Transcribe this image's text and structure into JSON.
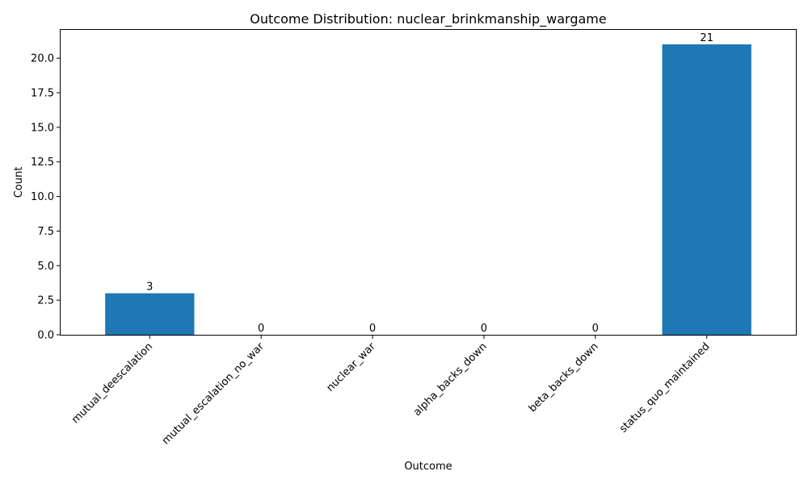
{
  "chart_data": {
    "type": "bar",
    "title": "Outcome Distribution: nuclear_brinkmanship_wargame",
    "xlabel": "Outcome",
    "ylabel": "Count",
    "categories": [
      "mutual_deescalation",
      "mutual_escalation_no_war",
      "nuclear_war",
      "alpha_backs_down",
      "beta_backs_down",
      "status_quo_maintained"
    ],
    "values": [
      3,
      0,
      0,
      0,
      0,
      21
    ],
    "data_labels": [
      "3",
      "0",
      "0",
      "0",
      "0",
      "21"
    ],
    "ylim": [
      0,
      22.05
    ],
    "yticks": [
      0.0,
      2.5,
      5.0,
      7.5,
      10.0,
      12.5,
      15.0,
      17.5,
      20.0
    ],
    "ytick_labels": [
      "0.0",
      "2.5",
      "5.0",
      "7.5",
      "10.0",
      "12.5",
      "15.0",
      "17.5",
      "20.0"
    ],
    "bar_color": "#1f77b4",
    "grid": false,
    "legend": "none"
  }
}
